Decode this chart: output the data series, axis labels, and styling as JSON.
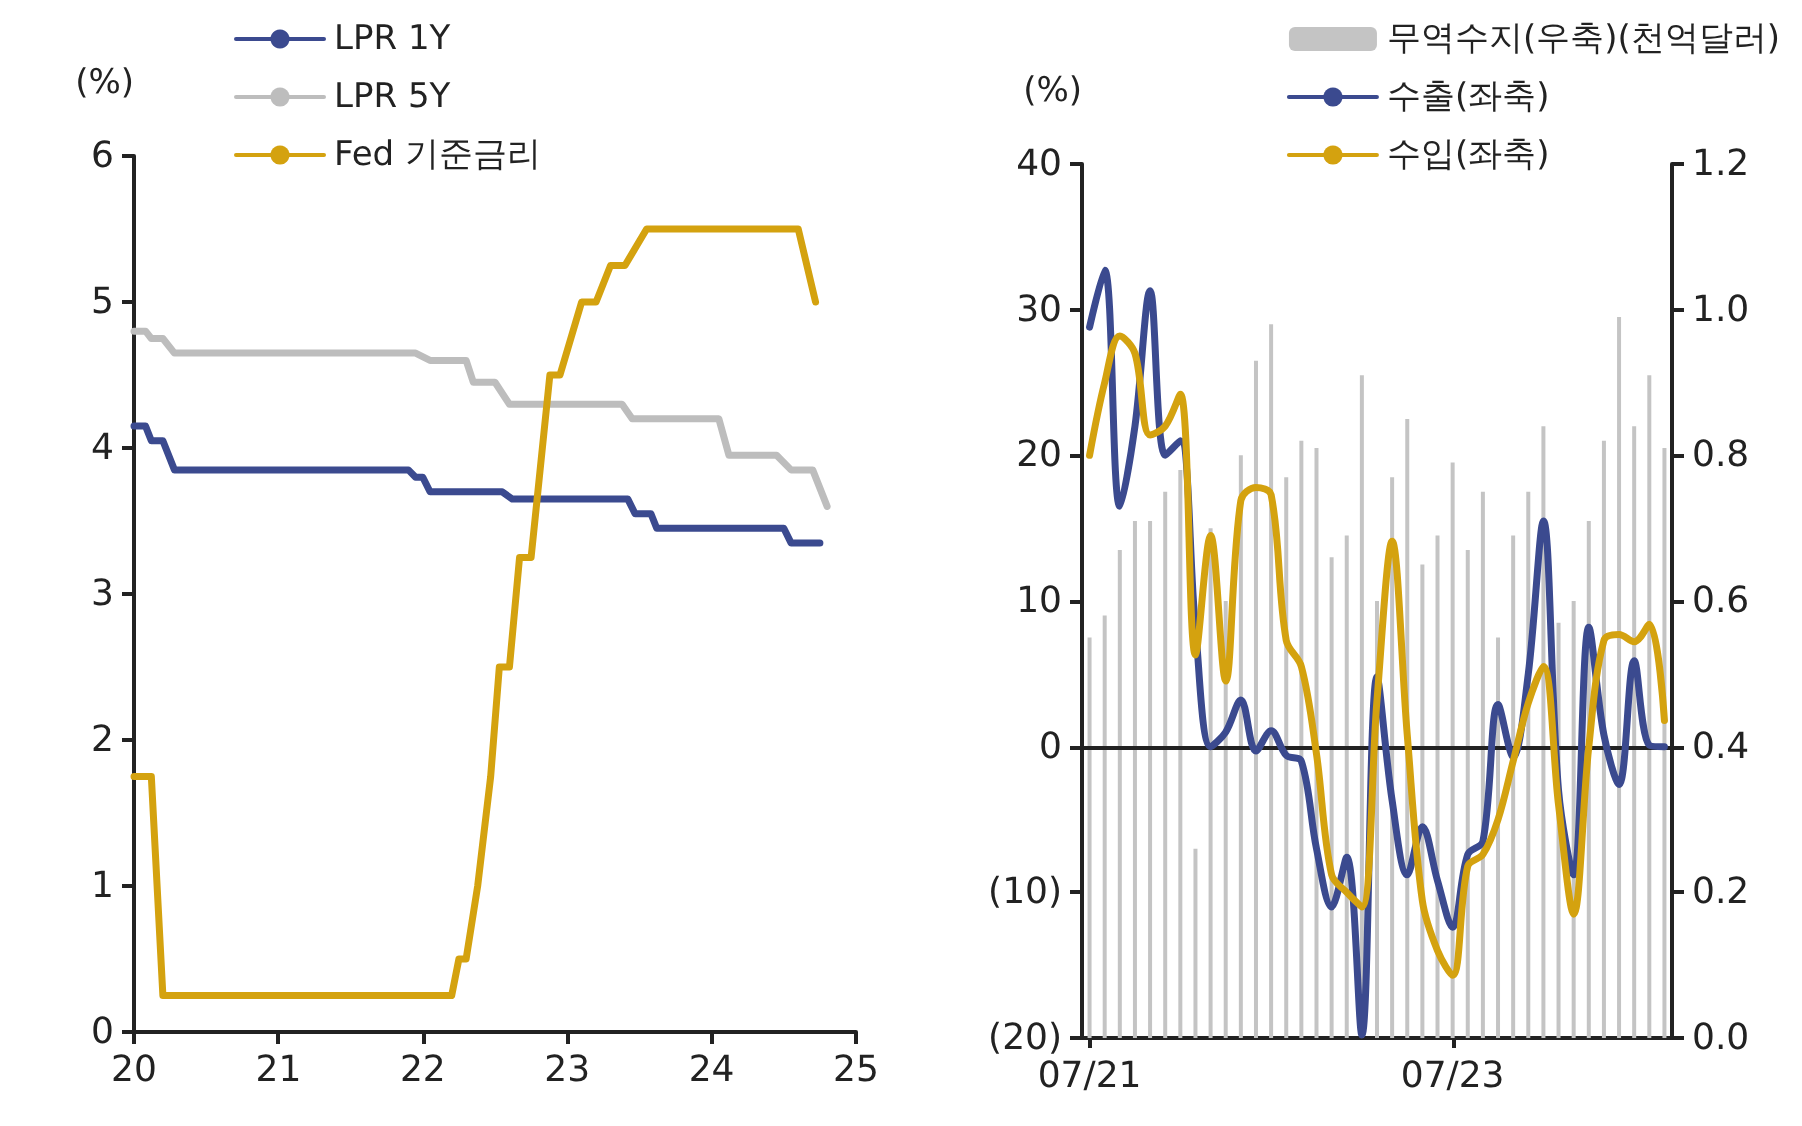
{
  "chart_data": [
    {
      "type": "line",
      "ylabel": "(%)",
      "xlim": [
        20,
        25
      ],
      "xticks": [
        20,
        21,
        22,
        23,
        24,
        25
      ],
      "ylim": [
        0,
        6
      ],
      "yticks": [
        0,
        1,
        2,
        3,
        4,
        5,
        6
      ],
      "legend": "top left",
      "grid": false,
      "marker": "none",
      "series": [
        {
          "name": "LPR 1Y",
          "color": "#3b4a8f",
          "x": [
            20,
            20.08,
            20.12,
            20.2,
            20.28,
            21.9,
            21.95,
            22,
            22.05,
            22.55,
            22.62,
            23.42,
            23.47,
            23.58,
            23.62,
            24.5,
            24.55,
            24.75
          ],
          "values": [
            4.15,
            4.15,
            4.05,
            4.05,
            3.85,
            3.85,
            3.8,
            3.8,
            3.7,
            3.7,
            3.65,
            3.65,
            3.55,
            3.55,
            3.45,
            3.45,
            3.35,
            3.35
          ]
        },
        {
          "name": "LPR 5Y",
          "color": "#bdbdbd",
          "x": [
            20,
            20.08,
            20.12,
            20.2,
            20.28,
            21.95,
            22.05,
            22.3,
            22.35,
            22.5,
            22.6,
            23.38,
            23.45,
            24.05,
            24.12,
            24.45,
            24.55,
            24.7,
            24.8
          ],
          "values": [
            4.8,
            4.8,
            4.75,
            4.75,
            4.65,
            4.65,
            4.6,
            4.6,
            4.45,
            4.45,
            4.3,
            4.3,
            4.2,
            4.2,
            3.95,
            3.95,
            3.85,
            3.85,
            3.6
          ]
        },
        {
          "name": "Fed 기준금리",
          "color": "#d4a20f",
          "x": [
            20,
            20.12,
            20.2,
            22.2,
            22.25,
            22.3,
            22.38,
            22.47,
            22.53,
            22.6,
            22.67,
            22.75,
            22.88,
            22.95,
            23.1,
            23.2,
            23.3,
            23.4,
            23.55,
            24.6,
            24.72
          ],
          "values": [
            1.75,
            1.75,
            0.25,
            0.25,
            0.5,
            0.5,
            1.0,
            1.75,
            2.5,
            2.5,
            3.25,
            3.25,
            4.5,
            4.5,
            5.0,
            5.0,
            5.25,
            5.25,
            5.5,
            5.5,
            5.0
          ]
        }
      ]
    },
    {
      "type": "line",
      "ylabel": "(%)",
      "categories": [
        "07/21",
        null,
        null,
        null,
        null,
        null,
        null,
        null,
        null,
        null,
        null,
        null,
        null,
        null,
        null,
        null,
        null,
        null,
        null,
        null,
        null,
        null,
        null,
        null,
        "07/23",
        null,
        null,
        null,
        null,
        null,
        null,
        null,
        null,
        null,
        null,
        null,
        null,
        null,
        null
      ],
      "ylim": [
        -20,
        40
      ],
      "yticks": [
        {
          "value": -20,
          "label": "(20)"
        },
        {
          "value": -10,
          "label": "(10)"
        },
        0,
        10,
        20,
        30,
        40
      ],
      "y2lim": [
        0,
        1.2
      ],
      "y2ticks": [
        {
          "value": 0,
          "label": "0.0"
        },
        {
          "value": 0.2,
          "label": "0.2"
        },
        {
          "value": 0.4,
          "label": "0.4"
        },
        {
          "value": 0.6,
          "label": "0.6"
        },
        {
          "value": 0.8,
          "label": "0.8"
        },
        {
          "value": 1,
          "label": "1.0"
        },
        {
          "value": 1.2,
          "label": "1.2"
        }
      ],
      "legend": "top right",
      "grid": false,
      "marker": "none",
      "ref_lines": [
        {
          "axis": "y",
          "value": 0,
          "color": "#222222"
        }
      ],
      "series": [
        {
          "name": "무역수지(우축)(천억달러)",
          "type": "bar",
          "axis": "y2",
          "color": "#c4c4c4",
          "values": [
            0.55,
            0.58,
            0.67,
            0.71,
            0.71,
            0.75,
            0.78,
            0.26,
            0.7,
            0.6,
            0.8,
            0.93,
            0.98,
            0.77,
            0.82,
            0.81,
            0.66,
            0.69,
            0.91,
            0.6,
            0.77,
            0.85,
            0.65,
            0.69,
            0.79,
            0.67,
            0.75,
            0.55,
            0.69,
            0.75,
            0.84,
            0.57,
            0.6,
            0.71,
            0.82,
            0.99,
            0.84,
            0.91,
            0.81
          ]
        },
        {
          "name": "수출(좌축)",
          "color": "#3b4a8f",
          "values": [
            28.8,
            32.7,
            16.5,
            22,
            31.3,
            20,
            21,
            8.2,
            0,
            1,
            3.2,
            -0.3,
            1.1,
            -0.6,
            -1,
            -7,
            -11,
            -7.6,
            -19.8,
            4.8,
            -3.7,
            -8.8,
            -5.5,
            -9.2,
            -12.4,
            -7.4,
            -6.5,
            2.9,
            -0.7,
            5,
            15.5,
            -3,
            -8.8,
            8.2,
            0.8,
            -2.6,
            5.9,
            0.1,
            0
          ]
        },
        {
          "name": "수입(좌축)",
          "color": "#d4a20f",
          "values": [
            20,
            25,
            28.2,
            27,
            21.4,
            22,
            24.2,
            6.3,
            14.5,
            4.5,
            16.9,
            17.8,
            17.3,
            7.3,
            5.5,
            -0.5,
            -8.8,
            -10,
            -11,
            3.2,
            14.1,
            0.8,
            -10.6,
            -14,
            -15.7,
            -8.2,
            -7.4,
            -5,
            -1,
            3,
            5.5,
            -4,
            -11.5,
            0,
            7.3,
            7.7,
            7.2,
            8.4,
            1.8
          ]
        }
      ]
    }
  ]
}
